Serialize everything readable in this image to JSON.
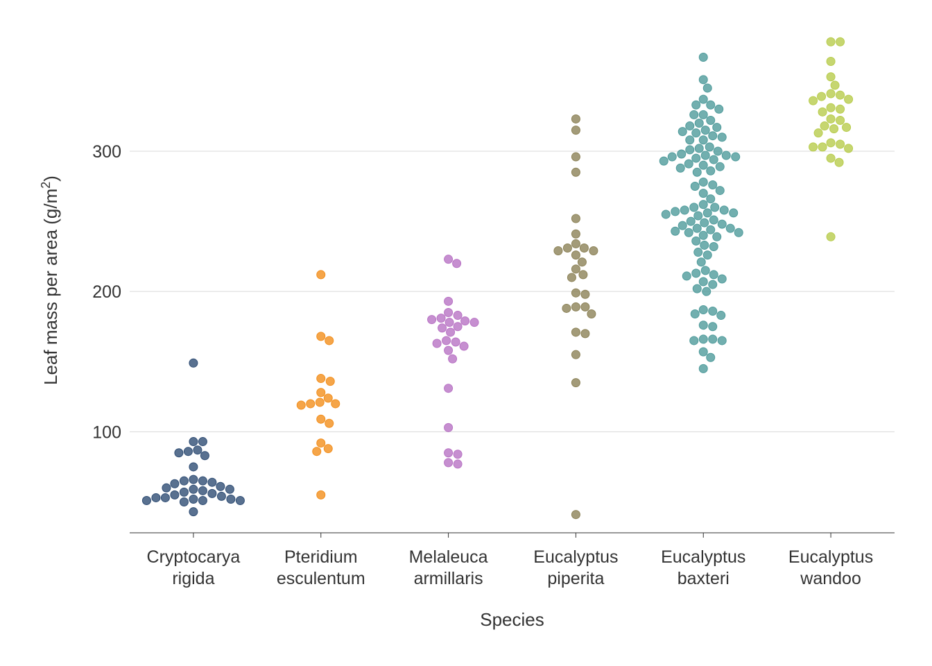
{
  "chart_data": {
    "type": "scatter",
    "style": "beeswarm",
    "xlabel": "Species",
    "ylabel": "Leaf mass per area (g/m",
    "ylabel_superscript": "2",
    "ylabel_suffix": ")",
    "ylim": [
      28,
      388
    ],
    "yticks": [
      100,
      200,
      300
    ],
    "ytick_labels": [
      "100",
      "200",
      "300"
    ],
    "grid": "horizontal",
    "legend": "none",
    "categories": [
      {
        "line1": "Cryptocarya",
        "line2": "rigida"
      },
      {
        "line1": "Pteridium",
        "line2": "esculentum"
      },
      {
        "line1": "Melaleuca",
        "line2": "armillaris"
      },
      {
        "line1": "Eucalyptus",
        "line2": "piperita"
      },
      {
        "line1": "Eucalyptus",
        "line2": "baxteri"
      },
      {
        "line1": "Eucalyptus",
        "line2": "wandoo"
      }
    ],
    "colors": [
      "#2f4d74",
      "#f28e1c",
      "#b873c4",
      "#8c8257",
      "#4f9b9b",
      "#b8cc4c"
    ],
    "series": [
      {
        "values": [
          149,
          93,
          93,
          87,
          86,
          83,
          85,
          75,
          66,
          65,
          65,
          64,
          63,
          61,
          60,
          59,
          59,
          58,
          57,
          56,
          55,
          54,
          53,
          53,
          52,
          52,
          51,
          51,
          51,
          50,
          43
        ]
      },
      {
        "values": [
          212,
          168,
          165,
          138,
          136,
          128,
          124,
          121,
          120,
          120,
          119,
          109,
          106,
          92,
          88,
          86,
          55
        ]
      },
      {
        "values": [
          223,
          220,
          193,
          185,
          183,
          181,
          180,
          179,
          178,
          178,
          175,
          174,
          171,
          165,
          164,
          163,
          161,
          158,
          152,
          131,
          103,
          85,
          84,
          78,
          77
        ]
      },
      {
        "values": [
          323,
          315,
          296,
          285,
          252,
          241,
          234,
          231,
          231,
          229,
          229,
          226,
          221,
          216,
          212,
          210,
          199,
          198,
          189,
          189,
          188,
          184,
          171,
          170,
          155,
          135,
          41
        ]
      },
      {
        "values": [
          367,
          351,
          345,
          337,
          333,
          333,
          330,
          326,
          326,
          322,
          320,
          318,
          317,
          315,
          314,
          313,
          311,
          310,
          308,
          308,
          303,
          302,
          301,
          300,
          298,
          297,
          297,
          296,
          296,
          295,
          294,
          293,
          291,
          290,
          289,
          288,
          286,
          285,
          278,
          276,
          275,
          272,
          270,
          266,
          262,
          260,
          260,
          258,
          258,
          257,
          256,
          256,
          255,
          254,
          251,
          250,
          249,
          248,
          247,
          245,
          245,
          244,
          243,
          242,
          242,
          240,
          239,
          236,
          233,
          232,
          228,
          226,
          221,
          215,
          213,
          212,
          211,
          209,
          207,
          205,
          202,
          200,
          187,
          186,
          184,
          183,
          176,
          175,
          166,
          166,
          165,
          165,
          157,
          153,
          145
        ]
      },
      {
        "values": [
          378,
          378,
          364,
          353,
          347,
          341,
          340,
          339,
          337,
          336,
          331,
          330,
          328,
          323,
          322,
          318,
          317,
          316,
          313,
          306,
          305,
          303,
          303,
          302,
          295,
          292,
          239
        ]
      }
    ]
  }
}
